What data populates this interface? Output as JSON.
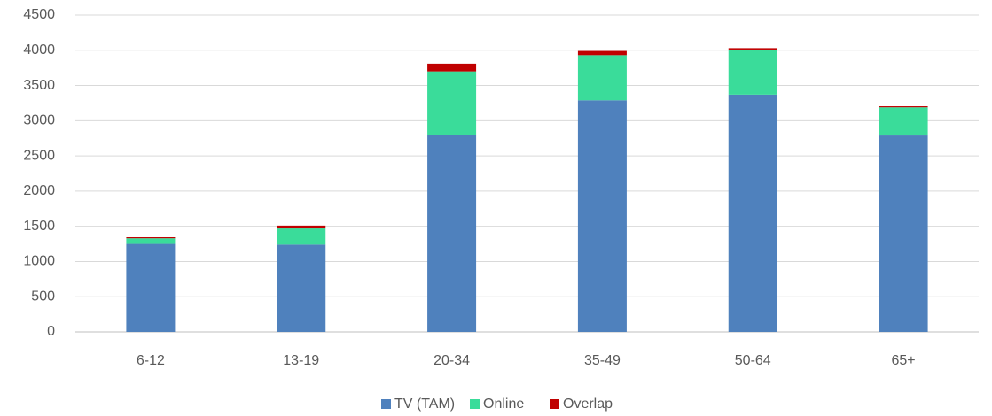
{
  "chart_data": {
    "type": "bar",
    "stacked": true,
    "categories": [
      "6-12",
      "13-19",
      "20-34",
      "35-49",
      "50-64",
      "65+"
    ],
    "series": [
      {
        "name": "TV (TAM)",
        "color": "#4f81bd",
        "values": [
          1250,
          1240,
          2800,
          3290,
          3370,
          2790
        ]
      },
      {
        "name": "Online",
        "color": "#3adc9a",
        "values": [
          80,
          230,
          900,
          640,
          640,
          400
        ]
      },
      {
        "name": "Overlap",
        "color": "#c00000",
        "values": [
          15,
          40,
          110,
          60,
          20,
          15
        ]
      }
    ],
    "ylim": [
      0,
      4500
    ],
    "yticks": [
      0,
      500,
      1000,
      1500,
      2000,
      2500,
      3000,
      3500,
      4000,
      4500
    ],
    "grid": true,
    "legend": "bottom"
  }
}
